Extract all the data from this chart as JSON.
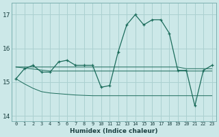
{
  "title": "",
  "xlabel": "Humidex (Indice chaleur)",
  "bg_color": "#cce8e8",
  "grid_color": "#aad0d0",
  "line_color": "#1a6b5a",
  "x_data": [
    0,
    1,
    2,
    3,
    4,
    5,
    6,
    7,
    8,
    9,
    10,
    11,
    12,
    13,
    14,
    15,
    16,
    17,
    18,
    19,
    20,
    21,
    22,
    23
  ],
  "y_main": [
    15.1,
    15.4,
    15.5,
    15.3,
    15.3,
    15.6,
    15.65,
    15.5,
    15.5,
    15.5,
    14.85,
    14.9,
    15.9,
    16.7,
    17.0,
    16.7,
    16.85,
    16.85,
    16.45,
    15.35,
    15.35,
    14.3,
    15.35,
    15.5
  ],
  "y_trend1": [
    15.45,
    15.45,
    15.45,
    15.45,
    15.45,
    15.45,
    15.45,
    15.45,
    15.45,
    15.45,
    15.45,
    15.45,
    15.45,
    15.45,
    15.45,
    15.45,
    15.45,
    15.45,
    15.45,
    15.45,
    15.4,
    15.4,
    15.4,
    15.4
  ],
  "y_trend2": [
    15.45,
    15.42,
    15.39,
    15.36,
    15.33,
    15.33,
    15.33,
    15.33,
    15.33,
    15.33,
    15.33,
    15.33,
    15.33,
    15.33,
    15.33,
    15.33,
    15.33,
    15.33,
    15.33,
    15.33,
    15.33,
    15.33,
    15.33,
    15.33
  ],
  "y_trend3": [
    15.1,
    14.95,
    14.82,
    14.72,
    14.68,
    14.66,
    14.64,
    14.62,
    14.61,
    14.6,
    14.6,
    14.6,
    14.6,
    14.6,
    14.6,
    14.6,
    14.6,
    14.6,
    14.6,
    14.6,
    14.6,
    14.6,
    14.6,
    14.6
  ],
  "ylim": [
    13.85,
    17.35
  ],
  "yticks": [
    14,
    15,
    16,
    17
  ],
  "xticks": [
    0,
    1,
    2,
    3,
    4,
    5,
    6,
    7,
    8,
    9,
    10,
    11,
    12,
    13,
    14,
    15,
    16,
    17,
    18,
    19,
    20,
    21,
    22,
    23
  ]
}
